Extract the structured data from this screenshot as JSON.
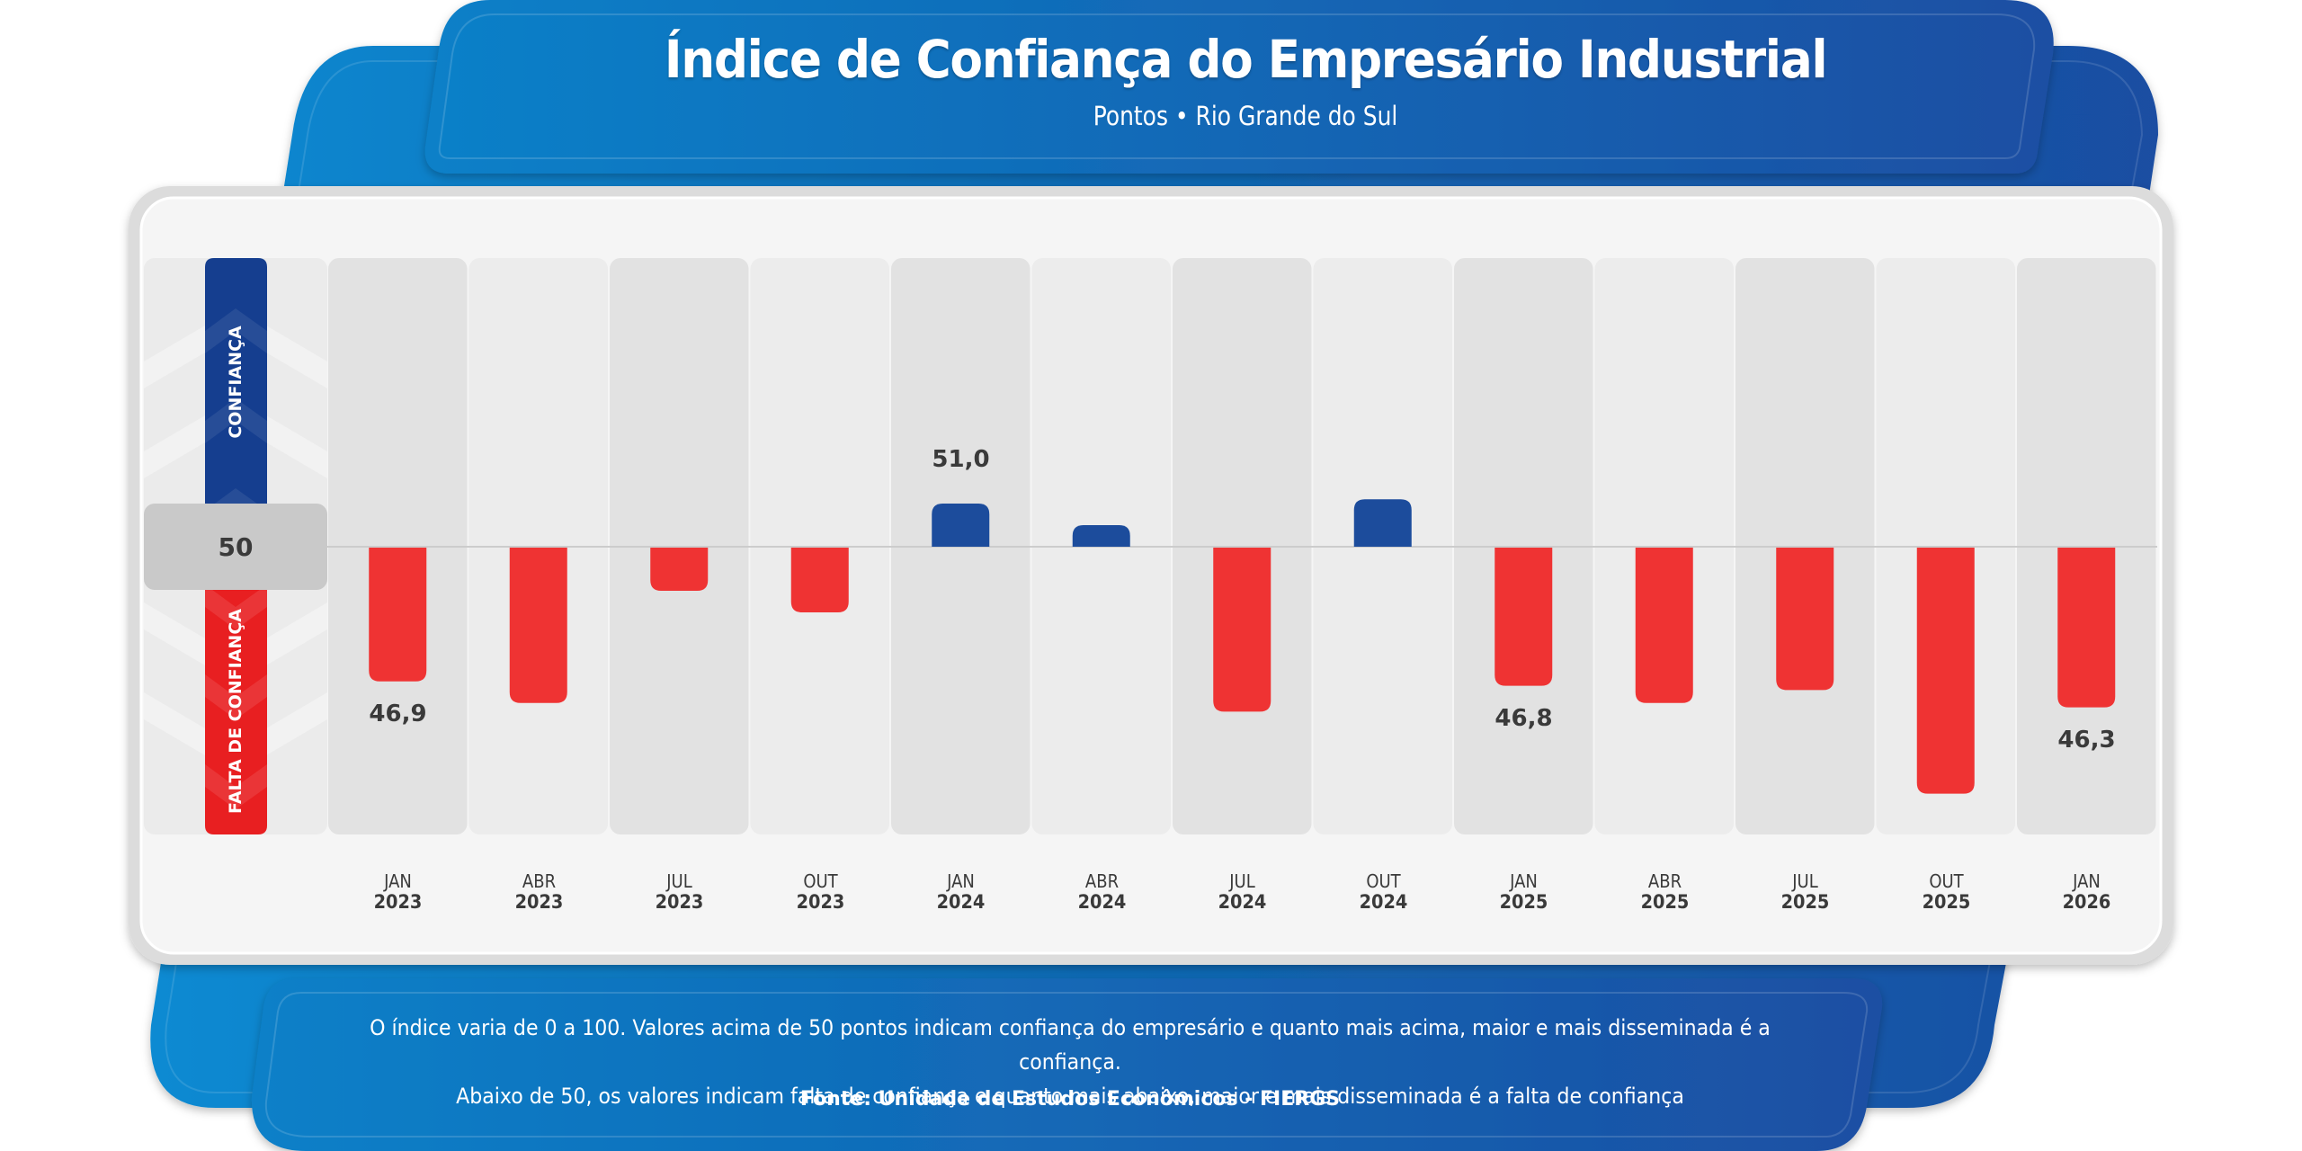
{
  "header": {
    "title": "Índice de Confiança do Empresário Industrial",
    "subtitle": "Pontos • Rio Grande do Sul"
  },
  "legend": {
    "upper_label": "CONFIANÇA",
    "lower_label": "FALTA DE CONFIANÇA",
    "threshold_label": "50"
  },
  "footer": {
    "note_line1": "O índice varia de 0 a 100. Valores acima de 50 pontos indicam confiança do empresário e quanto mais acima, maior e mais disseminada é a confiança.",
    "note_line2": "Abaixo de 50, os valores indicam falta de confiança e quanto mais abaixo, maior e mais disseminada é a falta de confiança",
    "source": "Fonte: Unidade de Estudos Econômicos - FIERGS"
  },
  "colors": {
    "confidence": "#1c4c9c",
    "lack_of_confidence": "#ef3333",
    "header_blue_left": "#0a80c8",
    "header_blue_right": "#1a4ea2"
  },
  "chart_data": {
    "type": "bar",
    "title": "Índice de Confiança do Empresário Industrial",
    "subtitle": "Pontos • Rio Grande do Sul",
    "xlabel": "",
    "ylabel": "Pontos",
    "baseline": 50,
    "ylim": [
      44,
      54
    ],
    "grid": false,
    "categories": [
      {
        "month": "JAN",
        "year": "2023"
      },
      {
        "month": "ABR",
        "year": "2023"
      },
      {
        "month": "JUL",
        "year": "2023"
      },
      {
        "month": "OUT",
        "year": "2023"
      },
      {
        "month": "JAN",
        "year": "2024"
      },
      {
        "month": "ABR",
        "year": "2024"
      },
      {
        "month": "JUL",
        "year": "2024"
      },
      {
        "month": "OUT",
        "year": "2024"
      },
      {
        "month": "JAN",
        "year": "2025"
      },
      {
        "month": "ABR",
        "year": "2025"
      },
      {
        "month": "JUL",
        "year": "2025"
      },
      {
        "month": "OUT",
        "year": "2025"
      },
      {
        "month": "JAN",
        "year": "2026"
      }
    ],
    "values": [
      46.9,
      46.4,
      49.0,
      48.5,
      51.0,
      50.5,
      46.2,
      51.1,
      46.8,
      46.4,
      46.7,
      44.3,
      46.3
    ],
    "data_labels": [
      {
        "index": 0,
        "text": "46,9"
      },
      {
        "index": 4,
        "text": "51,0"
      },
      {
        "index": 8,
        "text": "46,8"
      },
      {
        "index": 12,
        "text": "46,3"
      }
    ]
  }
}
